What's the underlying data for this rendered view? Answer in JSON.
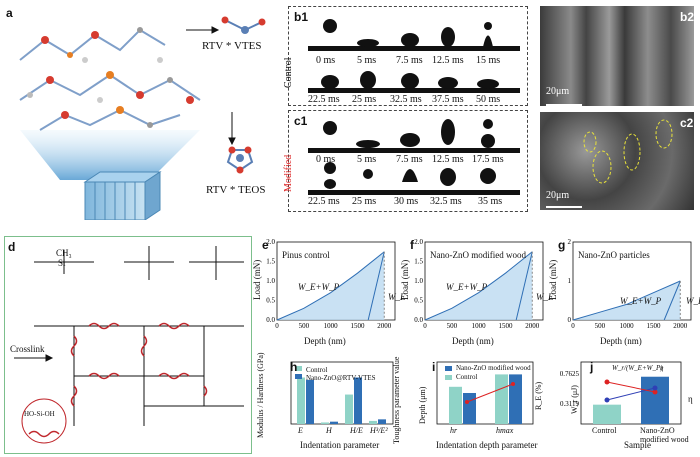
{
  "panel_a": {
    "label": "a",
    "vtes_label": "RTV * VTES",
    "teos_label": "RTV * TEOS"
  },
  "panel_b1": {
    "label": "b1",
    "side": "Control",
    "row1": [
      "0 ms",
      "5 ms",
      "7.5 ms",
      "12.5 ms",
      "15 ms"
    ],
    "row2": [
      "22.5 ms",
      "25 ms",
      "32.5 ms",
      "37.5 ms",
      "50 ms"
    ]
  },
  "panel_c1": {
    "label": "c1",
    "side": "Modified",
    "row1": [
      "0 ms",
      "5 ms",
      "7.5 ms",
      "12.5 ms",
      "17.5 ms"
    ],
    "row2": [
      "22.5 ms",
      "25 ms",
      "30 ms",
      "32.5 ms",
      "35 ms"
    ]
  },
  "panel_b2": {
    "label": "b2",
    "scale": "20μm"
  },
  "panel_c2": {
    "label": "c2",
    "scale": "20μm"
  },
  "panel_d": {
    "label": "d",
    "ch3": "CH₃",
    "si": "Si",
    "crosslink": "Crosslink",
    "inset_formula": "HO-Si-OH"
  },
  "panel_e": {
    "label": "e",
    "title": "Pinus control",
    "ylabel": "Load (mN)",
    "xlabel": "Depth (nm)",
    "we_wp": "W_E+W_P",
    "we": "W_E",
    "yticks": [
      "0.0",
      "0.5",
      "1.0",
      "1.5",
      "2.0"
    ],
    "xticks": [
      "0",
      "500",
      "1000",
      "1500",
      "2000"
    ]
  },
  "panel_f": {
    "label": "f",
    "title": "Nano-ZnO modified wood",
    "ylabel": "Load (mN)",
    "xlabel": "Depth (nm)",
    "we_wp": "W_E+W_P",
    "we": "W_E",
    "yticks": [
      "0.0",
      "0.5",
      "1.0",
      "1.5",
      "2.0"
    ],
    "xticks": [
      "0",
      "500",
      "1000",
      "1500",
      "2000"
    ]
  },
  "panel_g": {
    "label": "g",
    "title": "Nano-ZnO particles",
    "ylabel": "Load (mN)",
    "xlabel": "Depth (nm)",
    "we_wp": "W_E+W_P",
    "we": "W_E",
    "yticks": [
      "0",
      "1",
      "2"
    ],
    "xticks": [
      "0",
      "500",
      "1000",
      "1500",
      "2000"
    ]
  },
  "panel_h": {
    "label": "h",
    "ylabel": "Modulus / Hardness (GPa)",
    "y2label": "Toughness parameter value",
    "xlabel": "Indentation parameter",
    "legend": [
      "Control",
      "Nano-ZnO@RTV-VTES"
    ],
    "cats": [
      "E",
      "H",
      "H/E",
      "H³/E²"
    ]
  },
  "panel_i": {
    "label": "i",
    "ylabel": "Depth (μm)",
    "y2label": "R_E (%)",
    "xlabel": "Indentation depth parameter",
    "legend": [
      "Nano-ZnO modified wood",
      "Control"
    ],
    "cats": [
      "hr",
      "hmax"
    ]
  },
  "panel_j": {
    "label": "j",
    "ylabel": "W_r (μJ)",
    "y2label": "η",
    "xlabel": "Sample",
    "legend": [
      "W_r/(W_E+W_P)",
      "η"
    ],
    "cats": [
      "Control",
      "Nano-ZnO modified wood"
    ]
  },
  "chart_data": [
    {
      "type": "line",
      "panel": "e",
      "xlabel": "Depth (nm)",
      "ylabel": "Load (mN)",
      "title": "Pinus control",
      "xlim": [
        0,
        2200
      ],
      "ylim": [
        0,
        2.0
      ],
      "x": [
        0,
        500,
        1000,
        1500,
        2000
      ],
      "y": [
        0,
        0.3,
        0.7,
        1.2,
        1.75
      ]
    },
    {
      "type": "line",
      "panel": "f",
      "xlabel": "Depth (nm)",
      "ylabel": "Load (mN)",
      "title": "Nano-ZnO modified wood",
      "xlim": [
        0,
        2200
      ],
      "ylim": [
        0,
        2.0
      ],
      "x": [
        0,
        500,
        1000,
        1500,
        2000
      ],
      "y": [
        0,
        0.3,
        0.7,
        1.2,
        1.75
      ]
    },
    {
      "type": "line",
      "panel": "g",
      "xlabel": "Depth (nm)",
      "ylabel": "Load (mN)",
      "title": "Nano-ZnO particles",
      "xlim": [
        0,
        2200
      ],
      "ylim": [
        0,
        2
      ],
      "x": [
        0,
        500,
        1000,
        1500,
        2000
      ],
      "y": [
        0,
        0.2,
        0.4,
        0.7,
        1.0
      ]
    },
    {
      "type": "bar",
      "panel": "h",
      "categories": [
        "E",
        "H",
        "H/E",
        "H³/E²"
      ],
      "series": [
        {
          "name": "Control",
          "values": [
            0.6,
            0.02,
            0.38,
            0.04
          ]
        },
        {
          "name": "Nano-ZnO@RTV-VTES",
          "values": [
            0.57,
            0.03,
            0.6,
            0.06
          ]
        }
      ],
      "ylim": [
        0,
        0.8
      ],
      "y2lim": [
        0,
        0.08
      ]
    },
    {
      "type": "bar",
      "panel": "i",
      "categories": [
        "hr",
        "hmax"
      ],
      "series": [
        {
          "name": "Control",
          "values": [
            1.5,
            2.0
          ]
        },
        {
          "name": "Nano-ZnO modified wood",
          "values": [
            1.25,
            2.0
          ]
        }
      ],
      "ylim": [
        0,
        2.5
      ],
      "y2lim": [
        0,
        0.5
      ]
    },
    {
      "type": "bar",
      "panel": "j",
      "categories": [
        "Control",
        "Nano-ZnO modified wood"
      ],
      "values": [
        0.3119,
        0.7625
      ],
      "ylim": [
        0,
        1.0
      ]
    }
  ]
}
